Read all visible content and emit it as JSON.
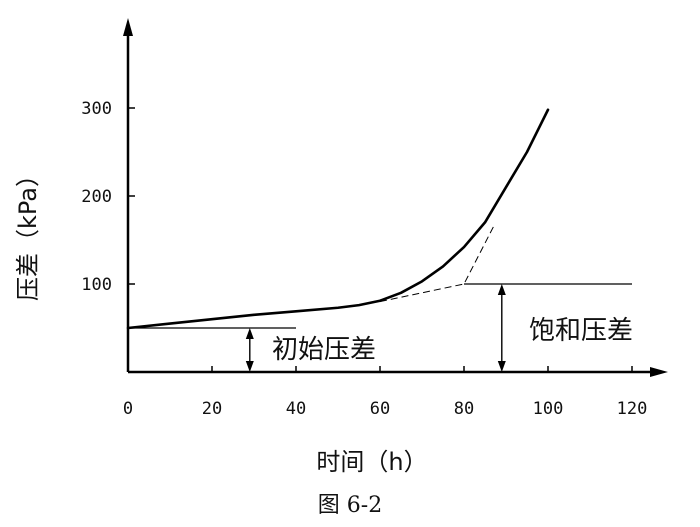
{
  "chart_data": {
    "type": "line",
    "title": "",
    "caption": "图 6-2",
    "xlabel": "时间（h）",
    "ylabel": "压差（kPa）",
    "xlim": [
      0,
      120
    ],
    "ylim": [
      0,
      300
    ],
    "x_ticks": [
      "0",
      "20",
      "40",
      "60",
      "80",
      "100",
      "120"
    ],
    "y_ticks": [
      "100",
      "200",
      "300"
    ],
    "grid": false,
    "legend": "none",
    "series": [
      {
        "x": [
          0,
          10,
          20,
          30,
          40,
          50,
          55,
          60,
          65,
          70,
          75,
          80,
          85,
          90,
          95,
          100
        ],
        "y": [
          50,
          55,
          60,
          65,
          69,
          73,
          76,
          81,
          90,
          103,
          120,
          142,
          170,
          210,
          250,
          298
        ]
      }
    ],
    "asymptotes": [
      {
        "x": [
          60,
          80,
          87
        ],
        "y": [
          80,
          100,
          165
        ]
      }
    ],
    "levels": {
      "initial": {
        "y": 50,
        "x_range": [
          0,
          40
        ]
      },
      "saturation": {
        "y": 100,
        "x_range": [
          80,
          120
        ]
      }
    },
    "annotations": [
      {
        "text": "初始压差",
        "arrow_x": 29,
        "from_y": 0,
        "to_y": 50
      },
      {
        "text": "饱和压差",
        "arrow_x": 89,
        "from_y": 0,
        "to_y": 100
      }
    ],
    "colors": {
      "line": "#000000",
      "axis": "#000000",
      "background": "#ffffff"
    }
  }
}
